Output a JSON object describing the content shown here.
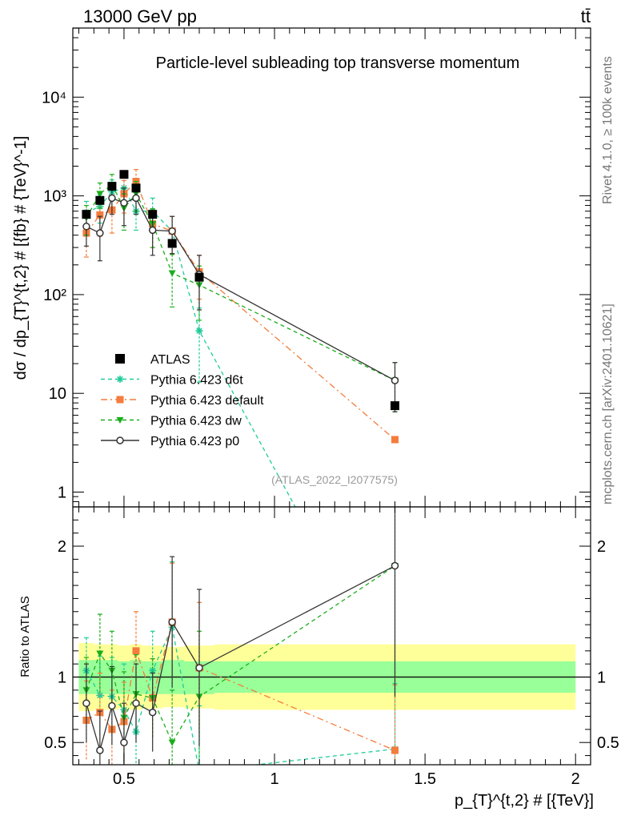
{
  "header": {
    "energy_label": "13000 GeV pp",
    "process_label": "tt̄",
    "plot_title": "Particle-level subleading top transverse momentum",
    "analysis_id": "(ATLAS_2022_I2077575)",
    "side_label_top": "Rivet 4.1.0, ≥ 100k events",
    "side_label_bottom": "mcplots.cern.ch [arXiv:2401.10621]"
  },
  "axes": {
    "main_ylabel": "dσ / dp_{T}^{t,2} # [{fb} # {TeV}^-1]",
    "ratio_ylabel": "Ratio to ATLAS",
    "xlabel": "p_{T}^{t,2} # [{TeV}]",
    "xlim": [
      0.33,
      2.05
    ],
    "main_ylim_log10": [
      -0.15,
      4.7
    ],
    "main_yscale": "log",
    "ratio_ylim": [
      0.33,
      2.3
    ],
    "x_ticks": [
      0.5,
      1,
      1.5,
      2
    ],
    "x_tick_labels": [
      "0.5",
      "1",
      "1.5",
      "2"
    ],
    "main_y_ticks": [
      1,
      10,
      100,
      1000,
      10000
    ],
    "main_y_tick_labels": [
      "1",
      "10",
      "10²",
      "10³",
      "10⁴"
    ],
    "ratio_y_ticks": [
      0.5,
      1,
      2
    ],
    "ratio_y_tick_labels": [
      "0.5",
      "1",
      "2"
    ]
  },
  "legend": {
    "placement": "lower-left",
    "entries": [
      {
        "label": "ATLAS",
        "series": "atlas"
      },
      {
        "label": "Pythia 6.423 d6t",
        "series": "d6t"
      },
      {
        "label": "Pythia 6.423 default",
        "series": "default"
      },
      {
        "label": "Pythia 6.423 dw",
        "series": "dw"
      },
      {
        "label": "Pythia 6.423 p0",
        "series": "p0"
      }
    ]
  },
  "chart_data": {
    "type": "scatter",
    "x": [
      0.375,
      0.42,
      0.46,
      0.5,
      0.54,
      0.595,
      0.66,
      0.75,
      1.4
    ],
    "bands": {
      "x_edges": [
        0.35,
        0.4,
        0.44,
        0.48,
        0.52,
        0.56,
        0.63,
        0.7,
        0.8,
        2.0
      ],
      "inner_lo": [
        0.87,
        0.87,
        0.87,
        0.87,
        0.87,
        0.87,
        0.87,
        0.87,
        0.88
      ],
      "inner_hi": [
        1.13,
        1.13,
        1.13,
        1.12,
        1.13,
        1.12,
        1.13,
        1.12,
        1.12
      ],
      "outer_lo": [
        0.74,
        0.75,
        0.75,
        0.76,
        0.75,
        0.76,
        0.77,
        0.76,
        0.75
      ],
      "outer_hi": [
        1.26,
        1.25,
        1.25,
        1.24,
        1.25,
        1.24,
        1.23,
        1.24,
        1.25
      ]
    },
    "series": [
      {
        "id": "atlas",
        "name": "ATLAS",
        "color": "#000000",
        "marker": "square",
        "line": "none",
        "values": [
          650,
          900,
          1250,
          1650,
          1200,
          650,
          330,
          150,
          7.5
        ]
      },
      {
        "id": "d6t",
        "name": "Pythia 6.423 d6t",
        "color": "#1ecc99",
        "marker": "star",
        "line": "dashed",
        "values": [
          680,
          780,
          1100,
          1200,
          700,
          700,
          440,
          43,
          0.01
        ],
        "err": [
          200,
          250,
          350,
          400,
          250,
          250,
          180,
          30,
          0
        ],
        "ratio": [
          1.05,
          0.86,
          0.85,
          0.75,
          0.58,
          1.05,
          1.38,
          0.28,
          0.45
        ],
        "ratio_err": [
          0.25,
          0.3,
          0.3,
          0.35,
          0.3,
          0.3,
          0.5,
          0.5,
          0.5
        ]
      },
      {
        "id": "default",
        "name": "Pythia 6.423 default",
        "color": "#f47c3c",
        "marker": "square",
        "line": "dashdot",
        "values": [
          420,
          640,
          720,
          1050,
          1400,
          520,
          440,
          170,
          3.4
        ],
        "err": [
          180,
          250,
          300,
          380,
          450,
          220,
          180,
          80,
          0
        ],
        "ratio": [
          0.67,
          0.73,
          0.6,
          0.66,
          1.2,
          0.84,
          1.42,
          1.07,
          0.44
        ],
        "ratio_err": [
          0.3,
          0.3,
          0.3,
          0.3,
          0.3,
          0.3,
          0.45,
          0.5,
          0.5
        ]
      },
      {
        "id": "dw",
        "name": "Pythia 6.423 dw",
        "color": "#1aad1a",
        "marker": "triangle-down",
        "line": "dashed",
        "values": [
          600,
          1050,
          1300,
          750,
          1050,
          520,
          165,
          125,
          13.5
        ],
        "err": [
          200,
          300,
          350,
          300,
          350,
          220,
          90,
          70,
          7
        ],
        "ratio": [
          0.9,
          1.18,
          1.05,
          0.69,
          0.87,
          0.84,
          0.5,
          0.85,
          1.85
        ],
        "ratio_err": [
          0.25,
          0.3,
          0.3,
          0.35,
          0.3,
          0.3,
          0.4,
          0.5,
          1.0
        ]
      },
      {
        "id": "p0",
        "name": "Pythia 6.423 p0",
        "color": "#333333",
        "marker": "circle-open",
        "line": "solid",
        "values": [
          490,
          420,
          950,
          850,
          950,
          450,
          440,
          160,
          13.5
        ],
        "err": [
          180,
          200,
          300,
          350,
          300,
          200,
          180,
          90,
          7
        ],
        "ratio": [
          0.8,
          0.44,
          0.78,
          0.5,
          0.8,
          0.73,
          1.42,
          1.07,
          1.85
        ],
        "ratio_err": [
          0.3,
          0.3,
          0.3,
          0.3,
          0.3,
          0.3,
          0.5,
          0.6,
          1.0
        ]
      }
    ]
  }
}
